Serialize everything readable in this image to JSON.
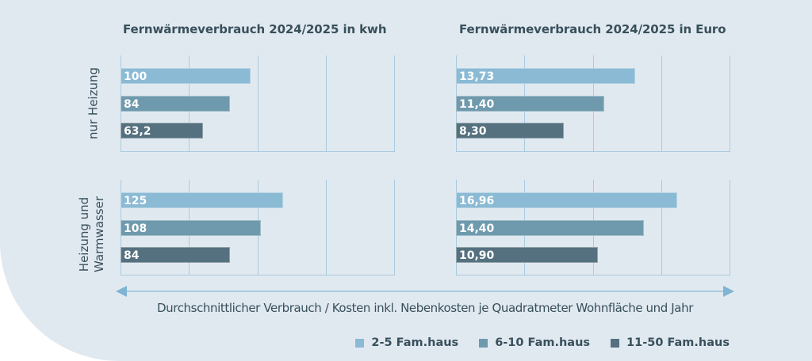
{
  "chart_data": [
    {
      "type": "bar",
      "orientation": "horizontal",
      "title": "Fernwärmeverbrauch 2024/2025 in kwh",
      "row_groups": [
        "nur Heizung",
        "Heizung und Warmwasser"
      ],
      "series": [
        {
          "name": "2-5 Fam.haus",
          "values": [
            100,
            125
          ],
          "labels": [
            "100",
            "125"
          ]
        },
        {
          "name": "6-10 Fam.haus",
          "values": [
            84,
            108
          ],
          "labels": [
            "84",
            "108"
          ]
        },
        {
          "name": "11-50 Fam.haus",
          "values": [
            63.2,
            84
          ],
          "labels": [
            "63,2",
            "84"
          ]
        }
      ],
      "xlim": [
        0,
        210
      ],
      "grid": true,
      "gridlines": 5
    },
    {
      "type": "bar",
      "orientation": "horizontal",
      "title": "Fernwärmeverbrauch 2024/2025 in Euro",
      "row_groups": [
        "nur Heizung",
        "Heizung und Warmwasser"
      ],
      "series": [
        {
          "name": "2-5 Fam.haus",
          "values": [
            13.73,
            16.96
          ],
          "labels": [
            "13,73",
            "16,96"
          ]
        },
        {
          "name": "6-10 Fam.haus",
          "values": [
            11.4,
            14.4
          ],
          "labels": [
            "11,40",
            "14,40"
          ]
        },
        {
          "name": "11-50 Fam.haus",
          "values": [
            8.3,
            10.9
          ],
          "labels": [
            "8,30",
            "10,90"
          ]
        }
      ],
      "xlim": [
        0,
        21
      ],
      "grid": true,
      "gridlines": 5
    }
  ],
  "titles": {
    "left": "Fernwärmeverbrauch 2024/2025 in kwh",
    "right": "Fernwärmeverbrauch 2024/2025 in Euro"
  },
  "row_labels": {
    "top": "nur Heizung",
    "bottom_line1": "Heizung und",
    "bottom_line2": "Warmwasser"
  },
  "xlabel": "Durchschnittlicher Verbrauch / Kosten inkl. Nebenkosten je Quadratmeter Wohnfläche und Jahr",
  "legend": [
    {
      "label": "2-5 Fam.haus",
      "color": "#8bbad5"
    },
    {
      "label": "6-10 Fam.haus",
      "color": "#6f9aad"
    },
    {
      "label": "11-50 Fam.haus",
      "color": "#55717f"
    }
  ],
  "colors": {
    "panel_bg": "#e1e9f0",
    "grid": "#a9cadf",
    "text": "#38505c",
    "series": [
      "#8bbad5",
      "#6f9aad",
      "#55717f"
    ]
  }
}
